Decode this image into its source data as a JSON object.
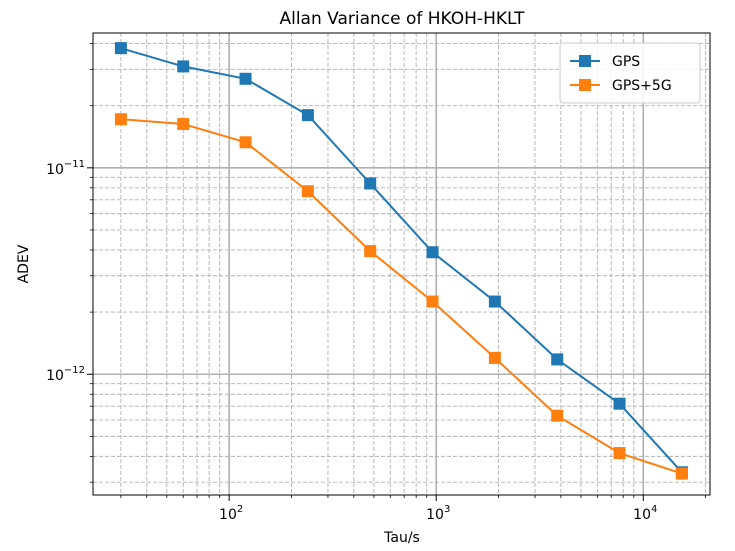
{
  "chart_data": {
    "type": "line",
    "title": "Allan Variance of HKOH-HKLT",
    "xlabel": "Tau/s",
    "ylabel": "ADEV",
    "xscale": "log",
    "yscale": "log",
    "xlim": [
      22,
      21000
    ],
    "ylim": [
      2.6e-13,
      4.5e-11
    ],
    "grid": true,
    "legend_position": "upper right",
    "x": [
      30,
      60,
      120,
      240,
      480,
      960,
      1920,
      3840,
      7680,
      15360
    ],
    "series": [
      {
        "name": "GPS",
        "color": "#1f77b4",
        "marker": "square",
        "values": [
          3.8e-11,
          3.1e-11,
          2.7e-11,
          1.8e-11,
          8.4e-12,
          3.9e-12,
          2.25e-12,
          1.18e-12,
          7.2e-13,
          3.35e-13
        ]
      },
      {
        "name": "GPS+5G",
        "color": "#ff7f0e",
        "marker": "square",
        "values": [
          1.72e-11,
          1.63e-11,
          1.33e-11,
          7.7e-12,
          3.95e-12,
          2.25e-12,
          1.2e-12,
          6.3e-13,
          4.15e-13,
          3.3e-13
        ]
      }
    ],
    "x_ticks": [
      {
        "value": 100,
        "base": "10",
        "exp": "2"
      },
      {
        "value": 1000,
        "base": "10",
        "exp": "3"
      },
      {
        "value": 10000,
        "base": "10",
        "exp": "4"
      }
    ],
    "y_ticks": [
      {
        "value": 1e-11,
        "base": "10",
        "exp": "−11"
      },
      {
        "value": 1e-12,
        "base": "10",
        "exp": "−12"
      }
    ]
  }
}
